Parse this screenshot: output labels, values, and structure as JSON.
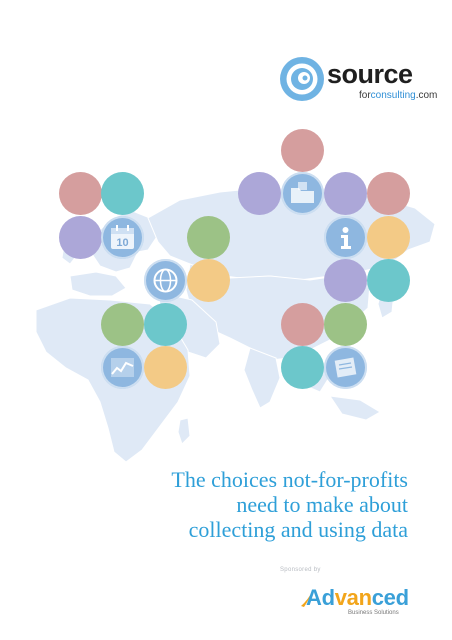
{
  "logo": {
    "word": "source",
    "sub_prefix": "for",
    "sub_accent": "consulting",
    "sub_suffix": ".com"
  },
  "title_lines": [
    "The choices not-for-profits",
    "need to make about",
    "collecting and using data"
  ],
  "sponsor": {
    "label": "Sponsored by",
    "name_pre": "Ad",
    "name_mid": "van",
    "name_post": "ced",
    "tagline": "Business Solutions"
  },
  "calendar_day": "10",
  "colors": {
    "pink": "#d59e9e",
    "teal": "#6cc7cb",
    "purple": "#aca7d8",
    "green": "#9cc286",
    "yellow": "#f3ca86",
    "icon_blue": "#8eb7e0",
    "map": "#dfe9f6",
    "title": "#2e9fd8"
  },
  "icons": [
    "folder-icon",
    "calendar-icon",
    "globe-icon",
    "info-icon",
    "chart-icon",
    "document-icon"
  ]
}
